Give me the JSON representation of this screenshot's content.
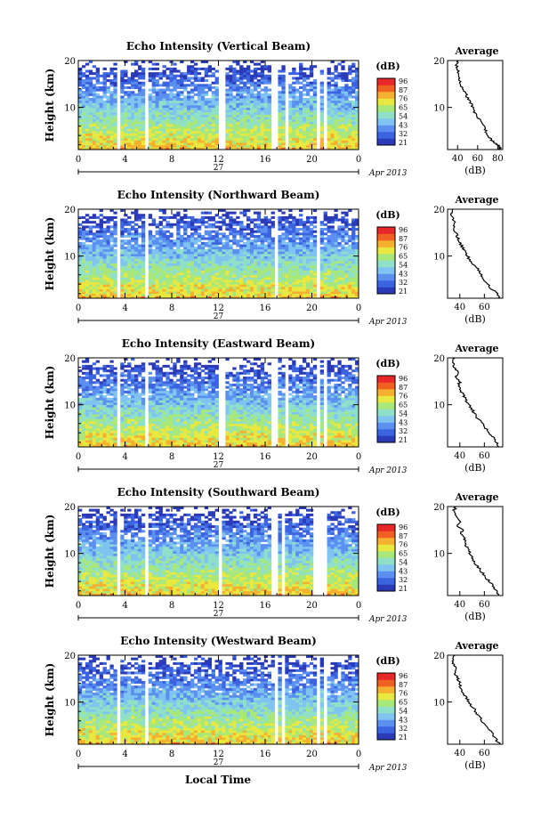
{
  "figure": {
    "bottom_xlabel": "Local Time"
  },
  "colorbar": {
    "unit": "(dB)",
    "colors": [
      "#2b3bb8",
      "#3c63e0",
      "#5b8ff0",
      "#7fc4f0",
      "#8fe0c8",
      "#a8e87a",
      "#e8e840",
      "#f5b030",
      "#f06020",
      "#e82828"
    ]
  },
  "chart_data": [
    {
      "type": "heatmap",
      "title": "Echo Intensity (Vertical Beam)",
      "ylabel": "Height (km)",
      "xlabel": "",
      "x_ticks": [
        "0",
        "4",
        "8",
        "12",
        "16",
        "20",
        "0"
      ],
      "y_ticks": [
        "20",
        "10"
      ],
      "day_label": "27",
      "month_label": "Apr 2013",
      "xlim": [
        0,
        24
      ],
      "ylim": [
        1,
        20
      ],
      "colorbar_ticks": [
        "96",
        "87",
        "76",
        "65",
        "54",
        "43",
        "32",
        "21"
      ],
      "gaps_hours": [
        3.4,
        5.8,
        12.3,
        16.8,
        17.8,
        20.5,
        21.1
      ],
      "average": {
        "title": "Average",
        "xlabel": "(dB)",
        "x_ticks": [
          "40",
          "60",
          "80"
        ],
        "xlim": [
          30,
          85
        ],
        "y_ticks": [
          "20",
          "10"
        ],
        "profile": [
          [
            83,
            1
          ],
          [
            82,
            1.5
          ],
          [
            80,
            2
          ],
          [
            77,
            2.5
          ],
          [
            74,
            3
          ],
          [
            72,
            3.5
          ],
          [
            70,
            4
          ],
          [
            68,
            5
          ],
          [
            66,
            6
          ],
          [
            63,
            7
          ],
          [
            60,
            8
          ],
          [
            57,
            9
          ],
          [
            55,
            10
          ],
          [
            53,
            11
          ],
          [
            50,
            12
          ],
          [
            48,
            13
          ],
          [
            45,
            14
          ],
          [
            43,
            15
          ],
          [
            41,
            16
          ],
          [
            42,
            17
          ],
          [
            40,
            18
          ],
          [
            39,
            19
          ],
          [
            41,
            20
          ]
        ]
      }
    },
    {
      "type": "heatmap",
      "title": "Echo Intensity (Northward Beam)",
      "ylabel": "Height (km)",
      "xlabel": "",
      "x_ticks": [
        "0",
        "4",
        "8",
        "12",
        "16",
        "20",
        "0"
      ],
      "y_ticks": [
        "20",
        "10"
      ],
      "day_label": "27",
      "month_label": "Apr 2013",
      "xlim": [
        0,
        24
      ],
      "ylim": [
        1,
        20
      ],
      "colorbar_ticks": [
        "96",
        "87",
        "76",
        "65",
        "54",
        "43",
        "32",
        "21"
      ],
      "gaps_hours": [
        3.4,
        5.8,
        16.9,
        20.6
      ],
      "average": {
        "title": "Average",
        "xlabel": "(dB)",
        "x_ticks": [
          "40",
          "60"
        ],
        "xlim": [
          30,
          75
        ],
        "y_ticks": [
          "20",
          "10"
        ],
        "profile": [
          [
            72,
            1
          ],
          [
            70,
            2
          ],
          [
            66,
            3
          ],
          [
            63,
            4
          ],
          [
            60,
            5
          ],
          [
            57,
            6
          ],
          [
            55,
            7
          ],
          [
            52,
            8
          ],
          [
            49,
            9
          ],
          [
            46,
            10
          ],
          [
            44,
            11
          ],
          [
            42,
            12
          ],
          [
            40,
            13
          ],
          [
            38,
            14
          ],
          [
            37,
            15
          ],
          [
            35,
            16
          ],
          [
            36,
            17
          ],
          [
            34,
            18
          ],
          [
            33,
            19
          ],
          [
            34,
            20
          ]
        ]
      }
    },
    {
      "type": "heatmap",
      "title": "Echo Intensity (Eastward Beam)",
      "ylabel": "Height (km)",
      "xlabel": "",
      "x_ticks": [
        "0",
        "4",
        "8",
        "12",
        "16",
        "20",
        "0"
      ],
      "y_ticks": [
        "20",
        "10"
      ],
      "day_label": "27",
      "month_label": "Apr 2013",
      "xlim": [
        0,
        24
      ],
      "ylim": [
        1,
        20
      ],
      "colorbar_ticks": [
        "96",
        "87",
        "76",
        "65",
        "54",
        "43",
        "32",
        "21"
      ],
      "gaps_hours": [
        3.4,
        5.8,
        12.3,
        16.8,
        17.8,
        20.5,
        21.1
      ],
      "average": {
        "title": "Average",
        "xlabel": "(dB)",
        "x_ticks": [
          "40",
          "60"
        ],
        "xlim": [
          30,
          75
        ],
        "y_ticks": [
          "20",
          "10"
        ],
        "profile": [
          [
            72,
            1
          ],
          [
            70,
            2
          ],
          [
            67,
            3
          ],
          [
            64,
            4
          ],
          [
            61,
            5
          ],
          [
            58,
            6
          ],
          [
            55,
            7
          ],
          [
            52,
            8
          ],
          [
            50,
            9
          ],
          [
            47,
            10
          ],
          [
            45,
            11
          ],
          [
            43,
            12
          ],
          [
            41,
            13
          ],
          [
            39,
            14
          ],
          [
            40,
            15
          ],
          [
            37,
            16
          ],
          [
            38,
            17
          ],
          [
            35,
            18
          ],
          [
            34,
            19
          ],
          [
            36,
            20
          ]
        ]
      }
    },
    {
      "type": "heatmap",
      "title": "Echo Intensity (Southward Beam)",
      "ylabel": "Height (km)",
      "xlabel": "",
      "x_ticks": [
        "0",
        "4",
        "8",
        "12",
        "16",
        "20",
        "0"
      ],
      "y_ticks": [
        "20",
        "10"
      ],
      "day_label": "27",
      "month_label": "Apr 2013",
      "xlim": [
        0,
        24
      ],
      "ylim": [
        1,
        20
      ],
      "colorbar_ticks": [
        "96",
        "87",
        "76",
        "65",
        "54",
        "43",
        "32",
        "21"
      ],
      "gaps_hours": [
        3.4,
        5.8,
        12.2,
        16.8,
        17.6,
        20.4,
        21.0
      ],
      "average": {
        "title": "Average",
        "xlabel": "(dB)",
        "x_ticks": [
          "40",
          "60"
        ],
        "xlim": [
          30,
          75
        ],
        "y_ticks": [
          "20",
          "10"
        ],
        "profile": [
          [
            72,
            1
          ],
          [
            70,
            2
          ],
          [
            67,
            3
          ],
          [
            64,
            4
          ],
          [
            61,
            5
          ],
          [
            58,
            6
          ],
          [
            55,
            7
          ],
          [
            52,
            8
          ],
          [
            50,
            9
          ],
          [
            48,
            10
          ],
          [
            46,
            11
          ],
          [
            45,
            12
          ],
          [
            44,
            13
          ],
          [
            41,
            14
          ],
          [
            42,
            15
          ],
          [
            38,
            16
          ],
          [
            40,
            17
          ],
          [
            36,
            18
          ],
          [
            35,
            19
          ],
          [
            37,
            20
          ]
        ]
      }
    },
    {
      "type": "heatmap",
      "title": "Echo Intensity (Westward Beam)",
      "ylabel": "Height (km)",
      "xlabel": "",
      "x_ticks": [
        "0",
        "4",
        "8",
        "12",
        "16",
        "20",
        "0"
      ],
      "y_ticks": [
        "20",
        "10"
      ],
      "day_label": "27",
      "month_label": "Apr 2013",
      "xlim": [
        0,
        24
      ],
      "ylim": [
        1,
        20
      ],
      "colorbar_ticks": [
        "96",
        "87",
        "76",
        "65",
        "54",
        "43",
        "32",
        "21"
      ],
      "gaps_hours": [
        3.4,
        5.8,
        16.9,
        17.6,
        20.5,
        21.1
      ],
      "average": {
        "title": "Average",
        "xlabel": "(dB)",
        "x_ticks": [
          "40",
          "60"
        ],
        "xlim": [
          30,
          75
        ],
        "y_ticks": [
          "20",
          "10"
        ],
        "profile": [
          [
            72,
            1
          ],
          [
            70,
            2
          ],
          [
            67,
            3
          ],
          [
            64,
            4
          ],
          [
            61,
            5
          ],
          [
            58,
            6
          ],
          [
            55,
            7
          ],
          [
            53,
            8
          ],
          [
            50,
            9
          ],
          [
            48,
            10
          ],
          [
            45,
            11
          ],
          [
            43,
            12
          ],
          [
            41,
            13
          ],
          [
            40,
            14
          ],
          [
            38,
            15
          ],
          [
            36,
            16
          ],
          [
            37,
            17
          ],
          [
            35,
            18
          ],
          [
            34,
            19
          ],
          [
            36,
            20
          ]
        ]
      }
    }
  ]
}
